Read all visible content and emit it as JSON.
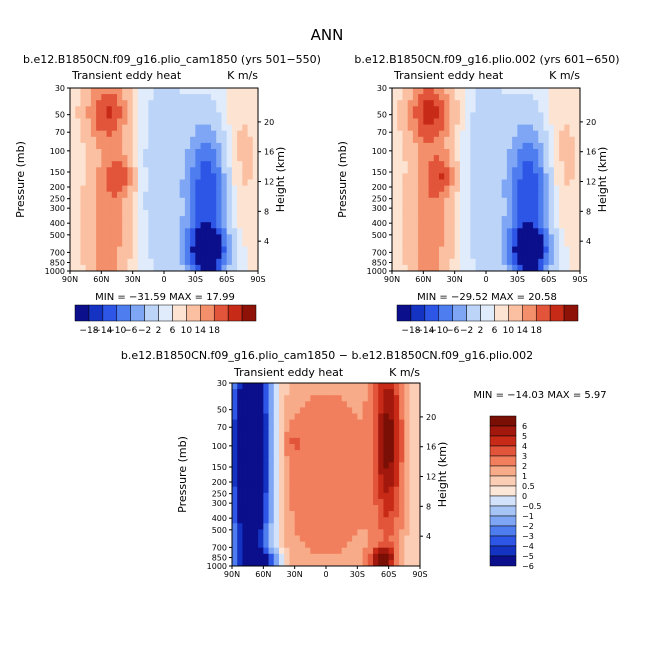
{
  "page_title": "ANN",
  "palette12": [
    "#0b0f8c",
    "#1433c2",
    "#2d56e6",
    "#4e7df0",
    "#7ea6f5",
    "#bcd4f8",
    "#e0ecfb",
    "#fde3d2",
    "#fbc0a2",
    "#f38f6b",
    "#e2553a",
    "#c82a18",
    "#8e1208"
  ],
  "palette14": [
    "#0b0f8c",
    "#1433c2",
    "#2d56e6",
    "#4e7df0",
    "#7ea6f5",
    "#a7c4f7",
    "#d2e2fa",
    "#fbe6d8",
    "#fbcdb5",
    "#f8ab88",
    "#f17f5e",
    "#e2553a",
    "#c82a18",
    "#a3180c",
    "#7a0f06"
  ],
  "chart_data": [
    {
      "type": "heatmap",
      "title": "b.e12.B1850CN.f09_g16.plio_cam1850 (yrs 501−550)",
      "left_label": "Transient eddy heat",
      "units": "K m/s",
      "xlabel": "",
      "ylabel": "Pressure (mb)",
      "y2label": "Height (km)",
      "x_ticks": [
        "90N",
        "60N",
        "30N",
        "0",
        "30S",
        "60S",
        "90S"
      ],
      "y_ticks": [
        "30",
        "50",
        "70",
        "100",
        "150",
        "200",
        "250",
        "300",
        "400",
        "500",
        "700",
        "850",
        "1000"
      ],
      "y2_ticks": [
        "4",
        "8",
        "12",
        "16",
        "20"
      ],
      "stats": "MIN = −31.59   MAX =  17.99",
      "colorbar_labels": [
        "−18",
        "−14",
        "−10",
        "−6",
        "−2",
        "2",
        "6",
        "10",
        "14",
        "18"
      ]
    },
    {
      "type": "heatmap",
      "title": "b.e12.B1850CN.f09_g16.plio.002 (yrs 601−650)",
      "left_label": "Transient eddy heat",
      "units": "K m/s",
      "xlabel": "",
      "ylabel": "Pressure (mb)",
      "y2label": "Height (km)",
      "x_ticks": [
        "90N",
        "60N",
        "30N",
        "0",
        "30S",
        "60S",
        "90S"
      ],
      "y_ticks": [
        "30",
        "50",
        "70",
        "100",
        "150",
        "200",
        "250",
        "300",
        "400",
        "500",
        "700",
        "850",
        "1000"
      ],
      "y2_ticks": [
        "4",
        "8",
        "12",
        "16",
        "20"
      ],
      "stats": "MIN = −29.52   MAX =  20.58",
      "colorbar_labels": [
        "−18",
        "−14",
        "−10",
        "−6",
        "−2",
        "2",
        "6",
        "10",
        "14",
        "18"
      ]
    },
    {
      "type": "heatmap",
      "title": "b.e12.B1850CN.f09_g16.plio_cam1850 − b.e12.B1850CN.f09_g16.plio.002",
      "left_label": "Transient eddy heat",
      "units": "K m/s",
      "xlabel": "",
      "ylabel": "Pressure (mb)",
      "y2label": "Height (km)",
      "x_ticks": [
        "90N",
        "60N",
        "30N",
        "0",
        "30S",
        "60S",
        "90S"
      ],
      "y_ticks": [
        "30",
        "50",
        "70",
        "100",
        "150",
        "200",
        "250",
        "300",
        "400",
        "500",
        "700",
        "850",
        "1000"
      ],
      "y2_ticks": [
        "4",
        "8",
        "12",
        "16",
        "20"
      ],
      "stats": "MIN = −14.03   MAX =   5.97",
      "colorbar_labels": [
        "6",
        "5",
        "4",
        "3",
        "2",
        "1",
        "0.5",
        "0",
        "−0.5",
        "−1",
        "−2",
        "−3",
        "−4",
        "−5",
        "−6"
      ]
    }
  ]
}
